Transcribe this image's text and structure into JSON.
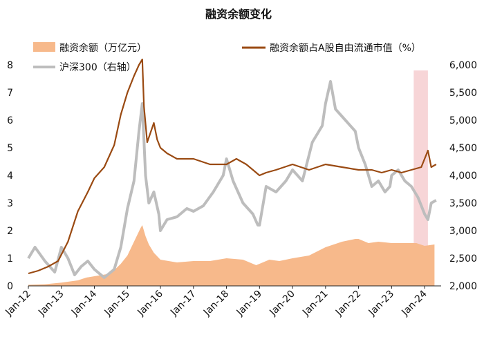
{
  "chart_data": {
    "type": "line",
    "title": "融资余额变化",
    "x_ticks": [
      "Jan-12",
      "Jan-13",
      "Jan-14",
      "Jan-15",
      "Jan-16",
      "Jan-17",
      "Jan-18",
      "Jan-19",
      "Jan-20",
      "Jan-21",
      "Jan-22",
      "Jan-23",
      "Jan-24"
    ],
    "y_left": {
      "ylim": [
        0,
        8
      ],
      "ticks": [
        "0",
        "1",
        "2",
        "3",
        "4",
        "5",
        "6",
        "7",
        "8"
      ]
    },
    "y_right": {
      "ylim": [
        2000,
        6000
      ],
      "ticks": [
        "2,000",
        "2,500",
        "3,000",
        "3,500",
        "4,000",
        "4,500",
        "5,000",
        "5,500",
        "6,000"
      ]
    },
    "legend": [
      "融资余额（万亿元）",
      "融资余额占A股自由流通市值（%）",
      "沪深300（右轴）"
    ],
    "highlight": {
      "x_start": 2023.67,
      "x_end": 2024.1,
      "color": "#f4c7c9"
    },
    "colors": {
      "balance": "#f7b98b",
      "ratio": "#9a4a12",
      "csi300": "#bdbdbd"
    },
    "series": [
      {
        "name": "融资余额（万亿元）",
        "axis": "left",
        "style": "area",
        "x": [
          2012.0,
          2012.5,
          2013.0,
          2013.5,
          2013.75,
          2014.0,
          2014.5,
          2014.8,
          2015.0,
          2015.2,
          2015.4,
          2015.45,
          2015.55,
          2015.65,
          2015.8,
          2016.0,
          2016.5,
          2017.0,
          2017.5,
          2018.0,
          2018.5,
          2018.9,
          2019.0,
          2019.3,
          2019.6,
          2020.0,
          2020.5,
          2021.0,
          2021.5,
          2021.9,
          2022.0,
          2022.3,
          2022.6,
          2023.0,
          2023.5,
          2023.75,
          2024.0,
          2024.3
        ],
        "values": [
          0.04,
          0.06,
          0.12,
          0.2,
          0.3,
          0.35,
          0.45,
          0.8,
          1.1,
          1.6,
          2.1,
          2.2,
          1.8,
          1.5,
          1.2,
          0.95,
          0.85,
          0.9,
          0.9,
          1.0,
          0.95,
          0.75,
          0.8,
          0.95,
          0.9,
          1.0,
          1.1,
          1.4,
          1.6,
          1.7,
          1.7,
          1.55,
          1.6,
          1.55,
          1.55,
          1.55,
          1.45,
          1.5
        ]
      },
      {
        "name": "融资余额占A股自由流通市值（%）",
        "axis": "left",
        "style": "line",
        "x": [
          2012.0,
          2012.3,
          2012.6,
          2012.9,
          2013.2,
          2013.5,
          2013.8,
          2014.0,
          2014.3,
          2014.6,
          2014.8,
          2015.0,
          2015.2,
          2015.35,
          2015.45,
          2015.5,
          2015.6,
          2015.8,
          2015.9,
          2016.0,
          2016.2,
          2016.5,
          2017.0,
          2017.5,
          2018.0,
          2018.3,
          2018.6,
          2018.8,
          2019.0,
          2019.2,
          2019.5,
          2020.0,
          2020.5,
          2021.0,
          2021.5,
          2022.0,
          2022.4,
          2022.7,
          2023.0,
          2023.3,
          2023.6,
          2023.9,
          2024.1,
          2024.2,
          2024.35
        ],
        "values": [
          0.45,
          0.55,
          0.7,
          0.9,
          1.6,
          2.7,
          3.4,
          3.9,
          4.3,
          5.1,
          6.2,
          7.0,
          7.6,
          8.0,
          8.2,
          6.5,
          5.2,
          5.9,
          5.3,
          5.0,
          4.8,
          4.6,
          4.6,
          4.4,
          4.4,
          4.6,
          4.4,
          4.2,
          4.0,
          4.1,
          4.2,
          4.4,
          4.2,
          4.4,
          4.3,
          4.2,
          4.2,
          4.1,
          4.2,
          4.1,
          4.2,
          4.3,
          4.9,
          4.3,
          4.4
        ]
      },
      {
        "name": "沪深300（右轴）",
        "axis": "right",
        "style": "line",
        "x": [
          2012.0,
          2012.2,
          2012.5,
          2012.8,
          2013.0,
          2013.2,
          2013.4,
          2013.6,
          2013.8,
          2014.0,
          2014.3,
          2014.6,
          2014.8,
          2015.0,
          2015.2,
          2015.35,
          2015.45,
          2015.55,
          2015.65,
          2015.8,
          2015.95,
          2016.0,
          2016.2,
          2016.5,
          2016.8,
          2017.0,
          2017.3,
          2017.6,
          2017.9,
          2018.0,
          2018.2,
          2018.5,
          2018.8,
          2018.95,
          2019.0,
          2019.2,
          2019.5,
          2019.8,
          2020.0,
          2020.3,
          2020.6,
          2020.9,
          2021.0,
          2021.15,
          2021.3,
          2021.6,
          2021.9,
          2022.0,
          2022.2,
          2022.4,
          2022.6,
          2022.8,
          2022.95,
          2023.0,
          2023.2,
          2023.4,
          2023.6,
          2023.8,
          2024.0,
          2024.1,
          2024.2,
          2024.35
        ],
        "values": [
          2500,
          2700,
          2450,
          2250,
          2700,
          2500,
          2200,
          2350,
          2450,
          2300,
          2150,
          2300,
          2700,
          3400,
          3900,
          4800,
          5300,
          4000,
          3500,
          3700,
          3300,
          3000,
          3200,
          3250,
          3400,
          3350,
          3450,
          3700,
          4000,
          4300,
          3900,
          3500,
          3300,
          3100,
          3100,
          3800,
          3700,
          3900,
          4100,
          3900,
          4600,
          4900,
          5300,
          5700,
          5200,
          5000,
          4800,
          4500,
          4200,
          3800,
          3900,
          3700,
          3800,
          4000,
          4100,
          3900,
          3800,
          3600,
          3300,
          3200,
          3500,
          3550
        ]
      }
    ]
  }
}
